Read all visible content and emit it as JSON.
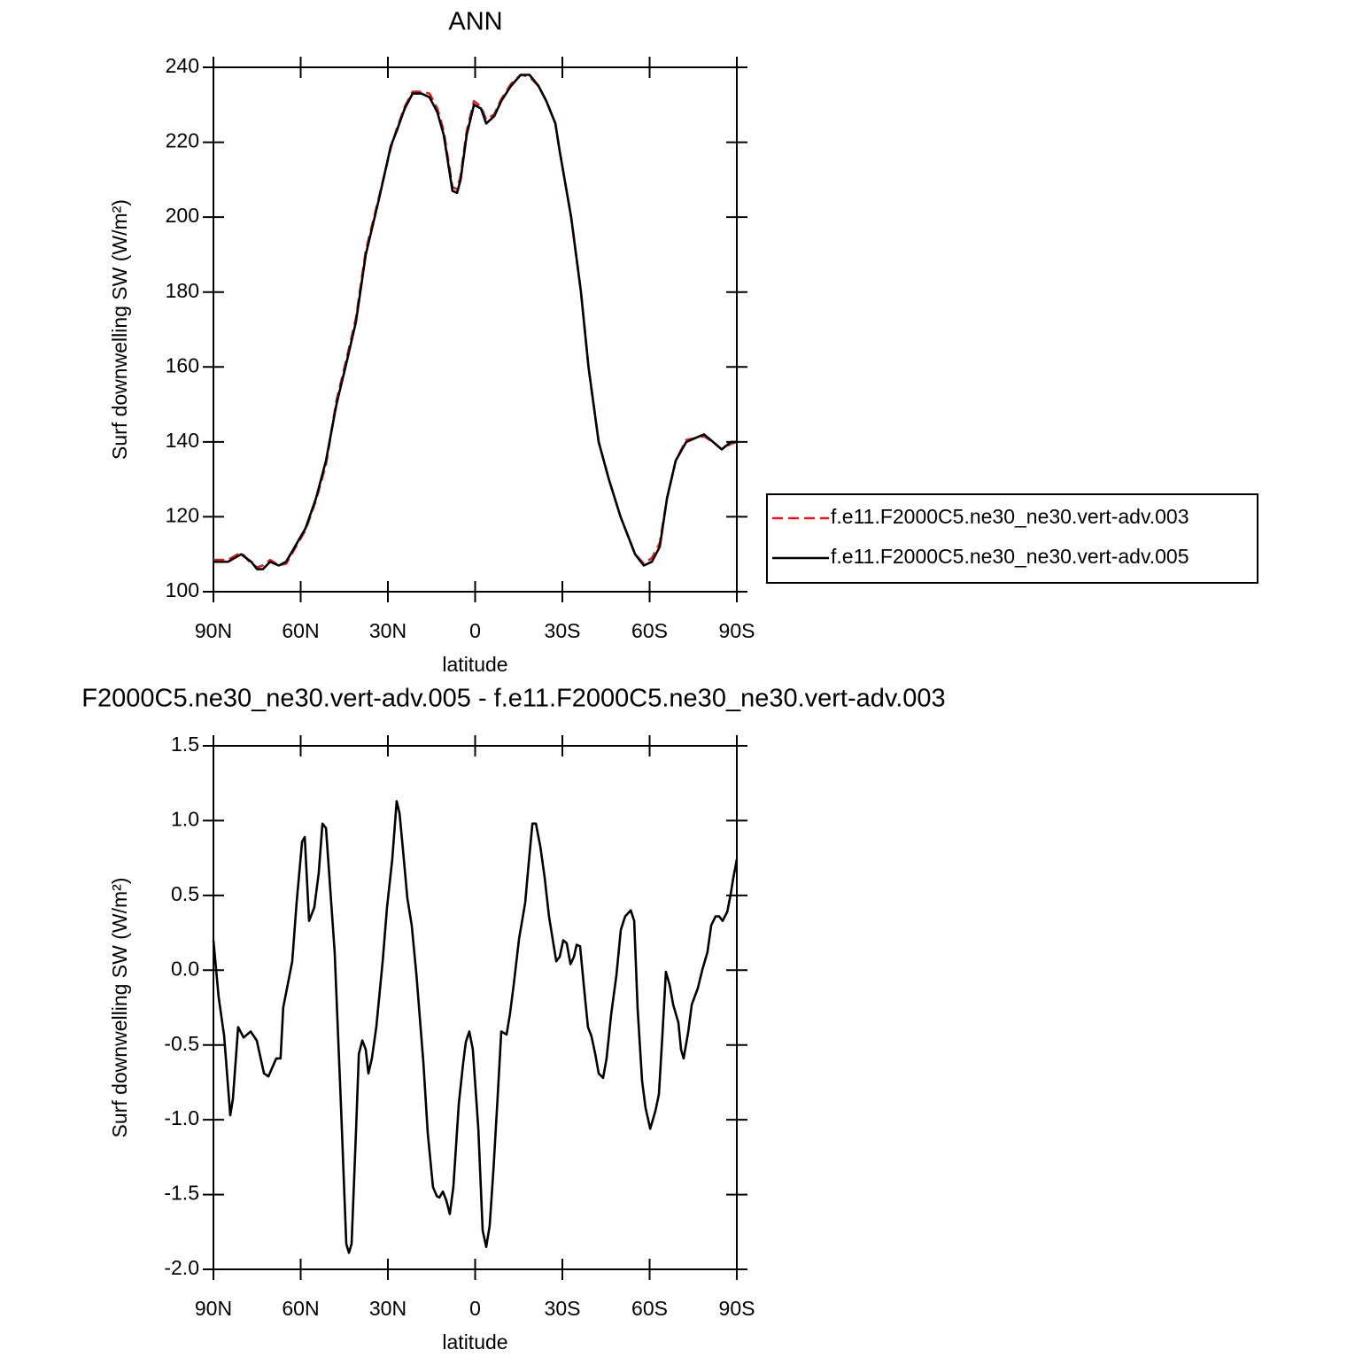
{
  "chart_data": [
    {
      "type": "line",
      "title": "ANN",
      "xlabel": "latitude",
      "ylabel": "Surf downwelling SW (W/m²)",
      "x": [
        90,
        85,
        80.5,
        77,
        75,
        73,
        70.5,
        67.5,
        65,
        62,
        58.3,
        54.7,
        51.3,
        47.7,
        44.6,
        41,
        37.6,
        33,
        29,
        27,
        24.2,
        21.5,
        18.5,
        15.7,
        13,
        10.8,
        7.8,
        6.2,
        5,
        2.9,
        0.4,
        -2,
        -3.8,
        -6.6,
        -9,
        -12.3,
        -15.7,
        -18.7,
        -21.8,
        -24.5,
        -27.6,
        -29,
        -33,
        -36.4,
        -39,
        -42.5,
        -46,
        -50,
        -55,
        -58,
        -60.8,
        -63.5,
        -66,
        -69,
        -72.6,
        -75.7,
        -78.7,
        -81.8,
        -84.8,
        -88,
        -90
      ],
      "series": [
        {
          "name": "f.e11.F2000C5.ne30_ne30.vert-adv.003",
          "color": "#e41a1c",
          "line_style": "dashed",
          "values": [
            108.5,
            108.5,
            110.5,
            107.5,
            106.5,
            107,
            108.5,
            107,
            107.5,
            111.5,
            116.5,
            124.5,
            134,
            151,
            161,
            173,
            191,
            205.5,
            218.5,
            223.5,
            229.5,
            233.5,
            233.5,
            233,
            229,
            223,
            208,
            207.5,
            211,
            223,
            231,
            229.5,
            226,
            227.5,
            231.5,
            235.5,
            238,
            237.5,
            235,
            231,
            225,
            218,
            200,
            180,
            160,
            140,
            130,
            120,
            110,
            107.5,
            109,
            113,
            125,
            135,
            140.5,
            141,
            141.5,
            140,
            138,
            139.5,
            140
          ]
        },
        {
          "name": "f.e11.F2000C5.ne30_ne30.vert-adv.005",
          "color": "#000000",
          "line_style": "solid",
          "values": [
            108,
            108,
            110,
            108,
            106,
            106,
            108,
            107,
            108,
            112,
            117,
            125,
            135,
            150,
            160,
            172,
            190,
            205,
            219,
            223,
            229,
            233,
            233,
            232,
            228,
            222,
            207,
            206.5,
            210,
            222,
            230,
            229,
            225,
            227,
            231,
            235,
            238,
            238,
            235,
            231,
            225,
            218,
            200,
            180,
            160,
            140,
            130,
            120,
            110,
            107,
            108,
            112,
            125,
            135,
            140,
            141,
            142,
            140,
            138,
            140,
            140
          ]
        }
      ],
      "xlim": [
        90,
        -90
      ],
      "xticks": [
        {
          "value": 90,
          "label": "90N"
        },
        {
          "value": 60,
          "label": "60N"
        },
        {
          "value": 30,
          "label": "30N"
        },
        0,
        {
          "value": -30,
          "label": "30S"
        },
        {
          "value": -60,
          "label": "60S"
        },
        {
          "value": -90,
          "label": "90S"
        }
      ],
      "ylim": [
        100,
        240
      ],
      "yticks": [
        100,
        120,
        140,
        160,
        180,
        200,
        220,
        240
      ],
      "legend": "right"
    },
    {
      "type": "line",
      "title": "F2000C5.ne30_ne30.vert-adv.005 - f.e11.F2000C5.ne30_ne30.vert-adv.003",
      "xlabel": "latitude",
      "ylabel": "Surf downwelling SW (W/m²)",
      "x": [
        90,
        88.2,
        86.3,
        84.2,
        83.3,
        81.5,
        79.6,
        77.2,
        75.1,
        72.6,
        71.1,
        68.4,
        66.9,
        66,
        62.9,
        61.4,
        59.5,
        58.6,
        57.1,
        55.3,
        53.8,
        52.5,
        51.3,
        48.3,
        46.1,
        44.3,
        43.4,
        42.5,
        41,
        40,
        38.8,
        37.6,
        36.7,
        35.5,
        34,
        31.8,
        30.3,
        28.5,
        27,
        26,
        24.8,
        23.3,
        21.8,
        20.2,
        17.8,
        16.3,
        14.5,
        13.2,
        12.3,
        11.1,
        9.9,
        8.7,
        7.5,
        5.6,
        4.1,
        3.2,
        2,
        0.8,
        -1.1,
        -2.6,
        -3.8,
        -5,
        -6.3,
        -7.8,
        -9,
        -10.8,
        -12,
        -13.3,
        -15.1,
        -17.2,
        -18.4,
        -19.7,
        -20.9,
        -22.4,
        -23.9,
        -25.4,
        -26.9,
        -27.9,
        -29.1,
        -30.3,
        -31.5,
        -32.8,
        -34,
        -34.9,
        -36.1,
        -37.6,
        -38.8,
        -40,
        -41.3,
        -42.5,
        -44,
        -45.2,
        -46.8,
        -48.6,
        -50.1,
        -51.6,
        -53.5,
        -54.7,
        -55.9,
        -57.4,
        -58.6,
        -60.2,
        -62,
        -63.2,
        -64.4,
        -65.6,
        -66.9,
        -68.1,
        -69.9,
        -70.8,
        -71.7,
        -73.3,
        -74.5,
        -76.6,
        -78.1,
        -79.9,
        -81.2,
        -82.7,
        -83.9,
        -85.1,
        -86.7,
        -87.9,
        -88.8,
        -90
      ],
      "values": [
        0.2,
        -0.18,
        -0.44,
        -0.97,
        -0.86,
        -0.38,
        -0.45,
        -0.41,
        -0.47,
        -0.69,
        -0.71,
        -0.59,
        -0.59,
        -0.25,
        0.06,
        0.45,
        0.86,
        0.89,
        0.33,
        0.42,
        0.65,
        0.98,
        0.95,
        0.12,
        -0.92,
        -1.83,
        -1.89,
        -1.83,
        -1.09,
        -0.56,
        -0.47,
        -0.53,
        -0.69,
        -0.59,
        -0.38,
        0.06,
        0.42,
        0.74,
        1.13,
        1.05,
        0.8,
        0.48,
        0.3,
        -0.03,
        -0.62,
        -1.09,
        -1.45,
        -1.51,
        -1.52,
        -1.48,
        -1.54,
        -1.63,
        -1.45,
        -0.89,
        -0.62,
        -0.48,
        -0.41,
        -0.53,
        -1.06,
        -1.74,
        -1.85,
        -1.71,
        -1.33,
        -0.83,
        -0.41,
        -0.43,
        -0.29,
        -0.09,
        0.21,
        0.45,
        0.71,
        0.98,
        0.98,
        0.83,
        0.62,
        0.36,
        0.18,
        0.06,
        0.09,
        0.2,
        0.18,
        0.04,
        0.09,
        0.17,
        0.16,
        -0.15,
        -0.38,
        -0.44,
        -0.56,
        -0.69,
        -0.72,
        -0.59,
        -0.29,
        -0.03,
        0.27,
        0.36,
        0.4,
        0.33,
        -0.26,
        -0.74,
        -0.92,
        -1.06,
        -0.94,
        -0.83,
        -0.44,
        -0.01,
        -0.1,
        -0.23,
        -0.35,
        -0.53,
        -0.59,
        -0.41,
        -0.23,
        -0.12,
        0,
        0.12,
        0.3,
        0.36,
        0.36,
        0.33,
        0.39,
        0.51,
        0.62,
        0.74
      ],
      "color": "#000000",
      "xlim": [
        90,
        -90
      ],
      "xticks": [
        {
          "value": 90,
          "label": "90N"
        },
        {
          "value": 60,
          "label": "60N"
        },
        {
          "value": 30,
          "label": "30N"
        },
        0,
        {
          "value": -30,
          "label": "30S"
        },
        {
          "value": -60,
          "label": "60S"
        },
        {
          "value": -90,
          "label": "90S"
        }
      ],
      "ylim": [
        -2,
        1.5
      ],
      "yticks": [
        {
          "value": -2,
          "label": "-2.0"
        },
        -1.5,
        {
          "value": -1,
          "label": "-1.0"
        },
        -0.5,
        {
          "value": 0,
          "label": "0.0"
        },
        0.5,
        {
          "value": 1,
          "label": "1.0"
        },
        1.5
      ]
    }
  ]
}
